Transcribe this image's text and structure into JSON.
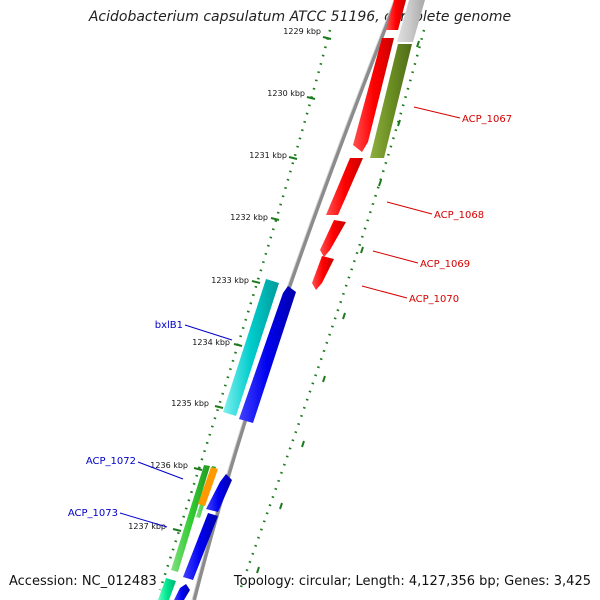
{
  "header": {
    "title": "Acidobacterium capsulatum ATCC 51196, complete genome"
  },
  "footer": {
    "accession": "Accession: NC_012483",
    "topology": "Topology: circular; Length: 4,127,356 bp; Genes: 3,425"
  },
  "colors": {
    "backbone": "#8c8c8c",
    "ruler": "#1e7a1e",
    "label_forward": "#d40000",
    "label_reverse": "#0000cc"
  },
  "ruler": {
    "ticks": [
      "1229 kbp",
      "1230 kbp",
      "1231 kbp",
      "1232 kbp",
      "1233 kbp",
      "1234 kbp",
      "1235 kbp",
      "1236 kbp",
      "1237 kbp"
    ]
  },
  "genes": [
    {
      "id": "ACP_1067",
      "label": "ACP_1067",
      "color": "#6b8e23",
      "strand": "forward"
    },
    {
      "id": "ACP_1068",
      "label": "ACP_1068",
      "color": "#ff0000",
      "strand": "forward"
    },
    {
      "id": "ACP_1069",
      "label": "ACP_1069",
      "color": "#ff0000",
      "strand": "forward"
    },
    {
      "id": "ACP_1070",
      "label": "ACP_1070",
      "color": "#ff0000",
      "strand": "forward"
    },
    {
      "id": "bxlB1",
      "label": "bxlB1",
      "color": "#00cccc",
      "strand": "reverse"
    },
    {
      "id": "ACP_1072",
      "label": "ACP_1072",
      "color": "#33cc33",
      "strand": "reverse"
    },
    {
      "id": "ACP_1073",
      "label": "ACP_1073",
      "color": "#0000ee",
      "strand": "reverse"
    }
  ]
}
